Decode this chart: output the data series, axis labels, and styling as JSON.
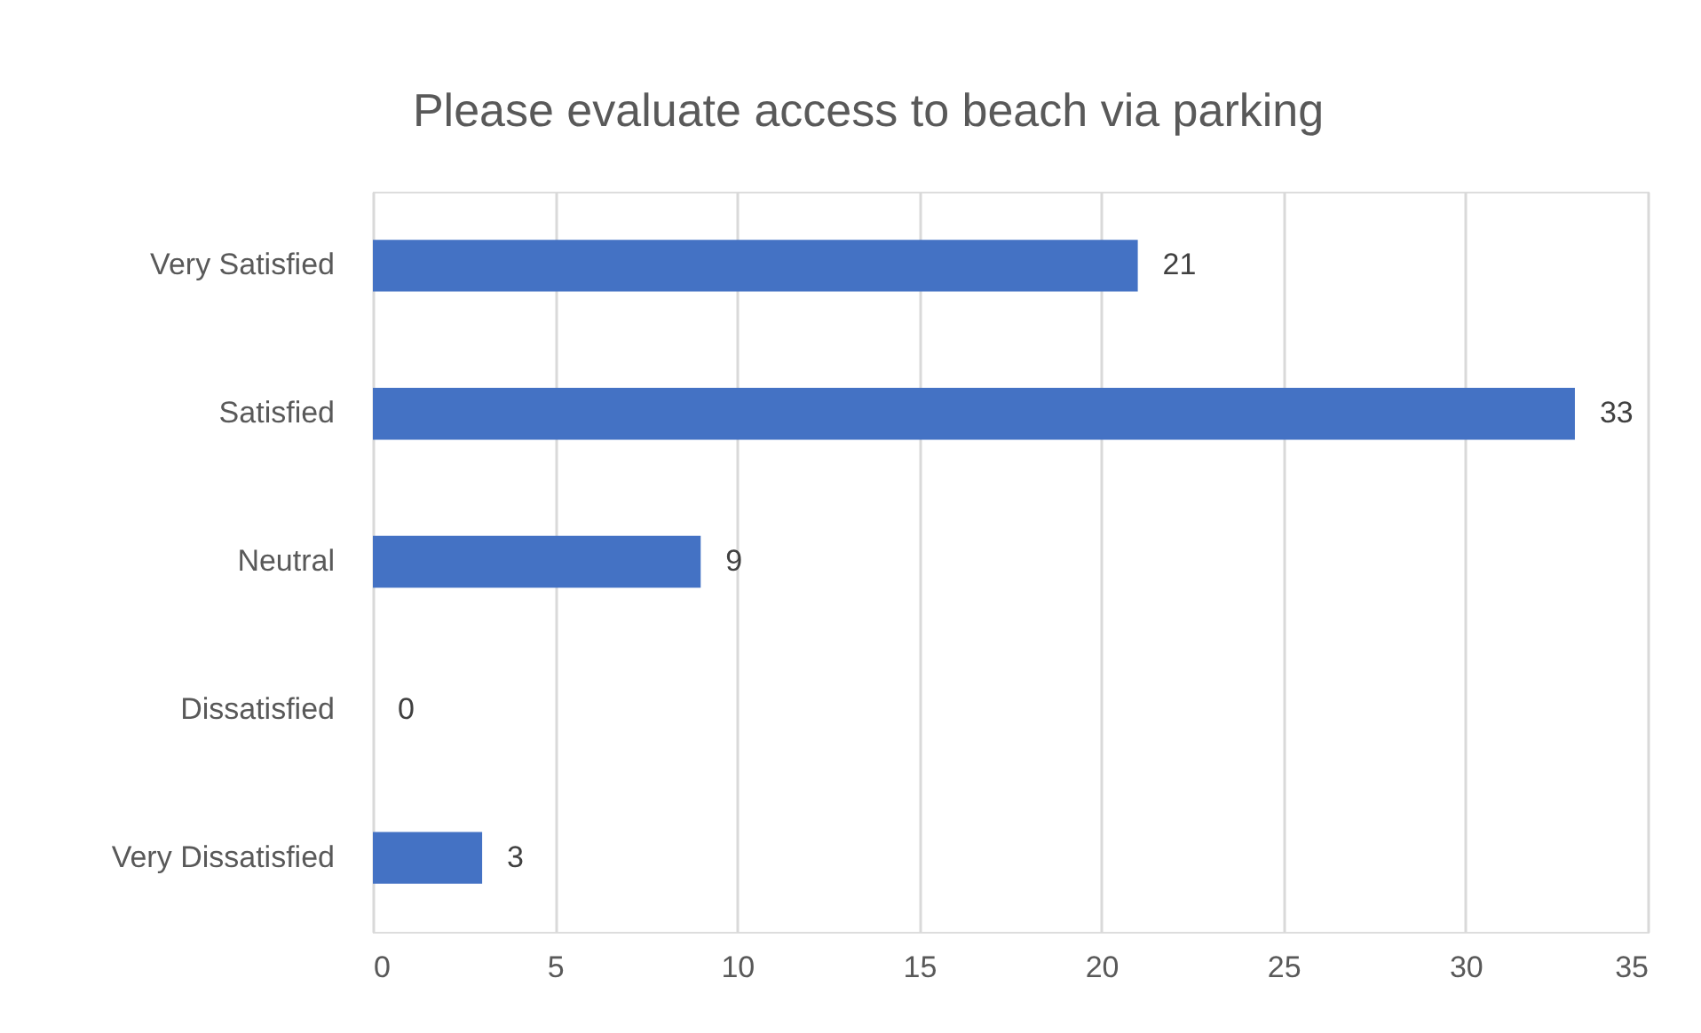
{
  "chart_data": {
    "type": "bar",
    "orientation": "horizontal",
    "title": "Please evaluate access to beach via parking",
    "categories": [
      "Very Satisfied",
      "Satisfied",
      "Neutral",
      "Dissatisfied",
      "Very Dissatisfied"
    ],
    "values": [
      21,
      33,
      9,
      0,
      3
    ],
    "color": "#4472c4",
    "xlim": [
      0,
      35
    ],
    "xticks": [
      0,
      5,
      10,
      15,
      20,
      25,
      30,
      35
    ],
    "grid": "x",
    "data_labels": true
  }
}
